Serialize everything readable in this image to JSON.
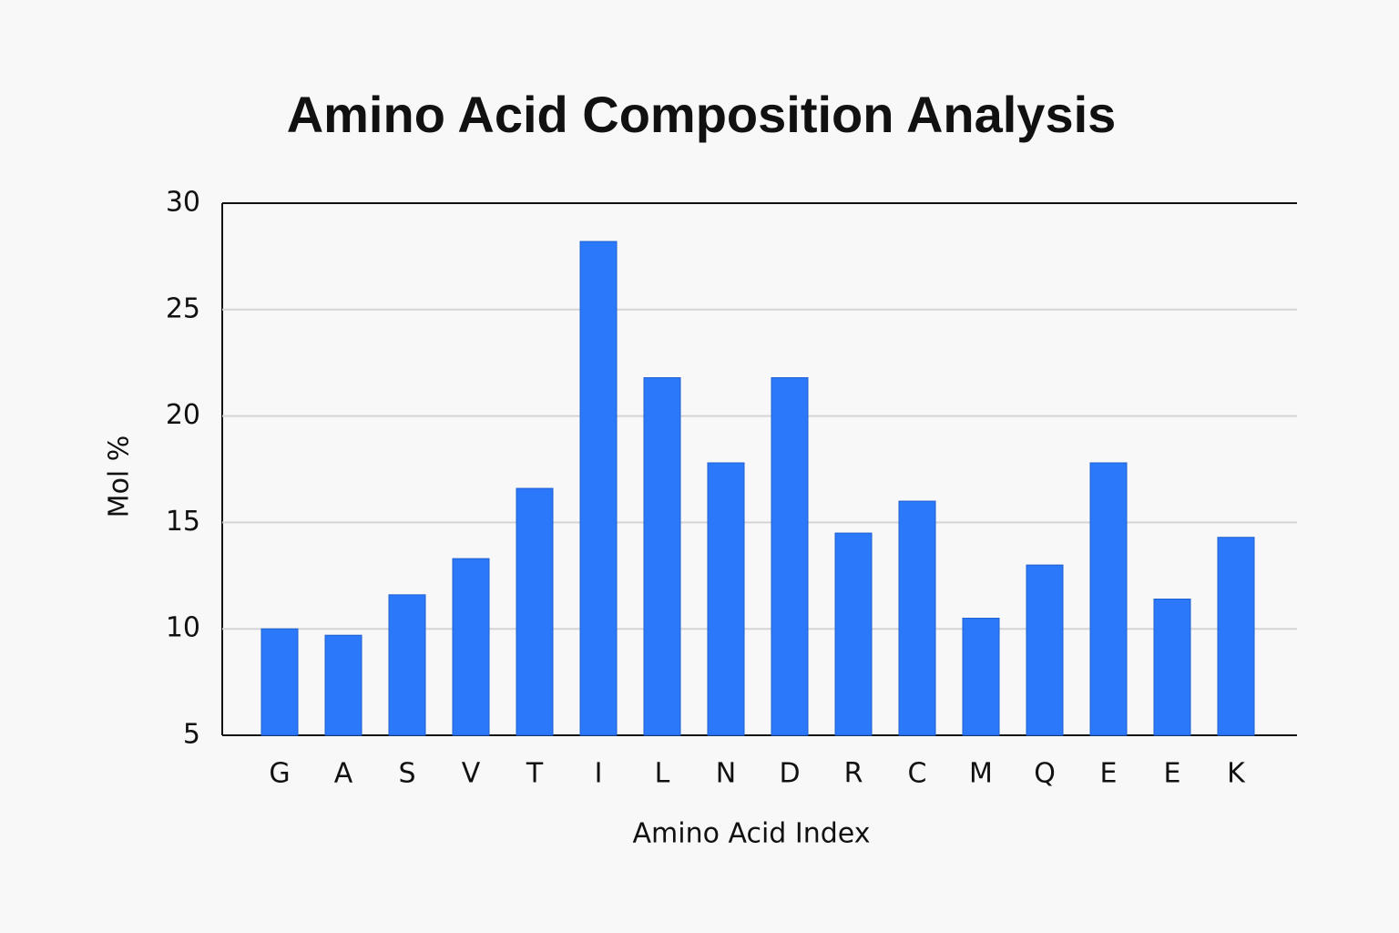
{
  "chart_data": {
    "type": "bar",
    "title": "Amino Acid Composition Analysis",
    "x_label": "Amino Acid Index",
    "y_label": "Mol %",
    "categories": [
      "G",
      "A",
      "S",
      "V",
      "T",
      "I",
      "L",
      "N",
      "D",
      "R",
      "C",
      "M",
      "Q",
      "E",
      "E",
      "K"
    ],
    "values": [
      10.0,
      9.7,
      11.6,
      13.3,
      16.6,
      28.2,
      21.8,
      17.8,
      21.8,
      14.5,
      16.0,
      10.5,
      13.0,
      17.8,
      11.4,
      14.3
    ],
    "color": "#2c78fa",
    "ylim": [
      5,
      30
    ],
    "yticks": [
      5,
      10,
      15,
      20,
      25,
      30
    ],
    "grid": true
  }
}
